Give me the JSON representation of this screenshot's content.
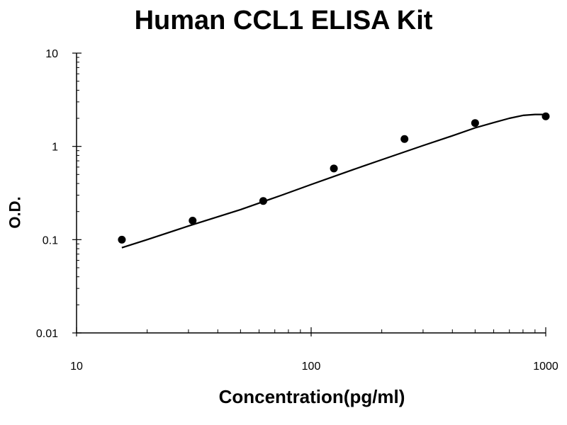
{
  "chart_data": {
    "type": "scatter",
    "title": "Human CCL1 ELISA Kit",
    "xlabel": "Concentration(pg/ml)",
    "ylabel": "O.D.",
    "x_scale": "log",
    "y_scale": "log",
    "xlim": [
      10,
      1000
    ],
    "ylim": [
      0.01,
      10
    ],
    "x_ticks": [
      10,
      100,
      1000
    ],
    "x_tick_labels": [
      "10",
      "100",
      "1000"
    ],
    "y_ticks": [
      0.01,
      0.1,
      1,
      10
    ],
    "y_tick_labels": [
      "0.01",
      "0.1",
      "1",
      "10"
    ],
    "grid": false,
    "series": [
      {
        "kind": "points",
        "x": [
          15.6,
          31.25,
          62.5,
          125,
          250,
          500,
          1000
        ],
        "y": [
          0.1,
          0.16,
          0.26,
          0.58,
          1.2,
          1.78,
          2.1
        ]
      },
      {
        "kind": "fit-curve",
        "x": [
          15.6,
          20,
          30,
          50,
          75,
          100,
          150,
          200,
          300,
          400,
          500,
          600,
          700,
          800,
          900,
          1000
        ],
        "y": [
          0.082,
          0.1,
          0.14,
          0.21,
          0.3,
          0.39,
          0.56,
          0.72,
          1.02,
          1.3,
          1.58,
          1.8,
          2.0,
          2.15,
          2.2,
          2.2
        ]
      }
    ],
    "colors": {
      "points": "#000000",
      "curve": "#000000",
      "axis": "#000000"
    }
  }
}
